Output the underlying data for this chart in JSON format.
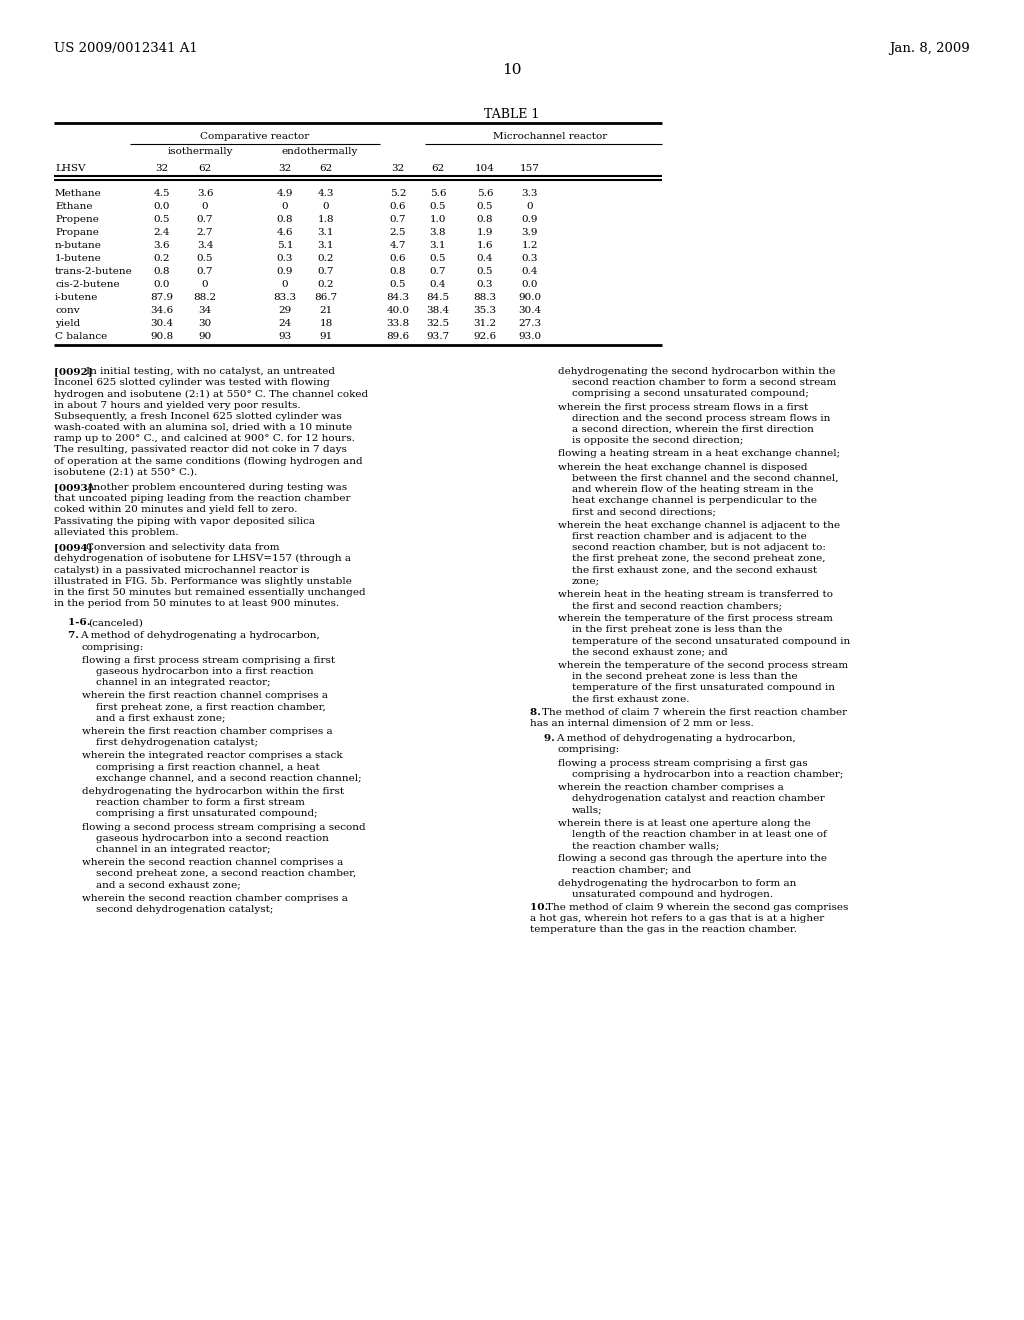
{
  "header_left": "US 2009/0012341 A1",
  "header_right": "Jan. 8, 2009",
  "page_number": "10",
  "table_title": "TABLE 1",
  "table": {
    "comp_reactor_label": "Comparative reactor",
    "isothermally_label": "isothermally",
    "endothermally_label": "endothermally",
    "microchannel_label": "Microchannel reactor",
    "lhsv_label": "LHSV",
    "lhsv_values": [
      "32",
      "62",
      "32",
      "62",
      "32",
      "62",
      "104",
      "157"
    ],
    "rows": [
      {
        "label": "Methane",
        "values": [
          "4.5",
          "3.6",
          "4.9",
          "4.3",
          "5.2",
          "5.6",
          "5.6",
          "3.3"
        ]
      },
      {
        "label": "Ethane",
        "values": [
          "0.0",
          "0",
          "0",
          "0",
          "0.6",
          "0.5",
          "0.5",
          "0"
        ]
      },
      {
        "label": "Propene",
        "values": [
          "0.5",
          "0.7",
          "0.8",
          "1.8",
          "0.7",
          "1.0",
          "0.8",
          "0.9"
        ]
      },
      {
        "label": "Propane",
        "values": [
          "2.4",
          "2.7",
          "4.6",
          "3.1",
          "2.5",
          "3.8",
          "1.9",
          "3.9"
        ]
      },
      {
        "label": "n-butane",
        "values": [
          "3.6",
          "3.4",
          "5.1",
          "3.1",
          "4.7",
          "3.1",
          "1.6",
          "1.2"
        ]
      },
      {
        "label": "1-butene",
        "values": [
          "0.2",
          "0.5",
          "0.3",
          "0.2",
          "0.6",
          "0.5",
          "0.4",
          "0.3"
        ]
      },
      {
        "label": "trans-2-butene",
        "values": [
          "0.8",
          "0.7",
          "0.9",
          "0.7",
          "0.8",
          "0.7",
          "0.5",
          "0.4"
        ]
      },
      {
        "label": "cis-2-butene",
        "values": [
          "0.0",
          "0",
          "0",
          "0.2",
          "0.5",
          "0.4",
          "0.3",
          "0.0"
        ]
      },
      {
        "label": "i-butene",
        "values": [
          "87.9",
          "88.2",
          "83.3",
          "86.7",
          "84.3",
          "84.5",
          "88.3",
          "90.0"
        ]
      },
      {
        "label": "conv",
        "values": [
          "34.6",
          "34",
          "29",
          "21",
          "40.0",
          "38.4",
          "35.3",
          "30.4"
        ]
      },
      {
        "label": "yield",
        "values": [
          "30.4",
          "30",
          "24",
          "18",
          "33.8",
          "32.5",
          "31.2",
          "27.3"
        ]
      },
      {
        "label": "C balance",
        "values": [
          "90.8",
          "90",
          "93",
          "91",
          "89.6",
          "93.7",
          "92.6",
          "93.0"
        ]
      }
    ]
  },
  "left_paragraphs": [
    {
      "tag": "[0092]",
      "body": "In initial testing, with no catalyst, an untreated Inconel 625 slotted cylinder was tested with flowing hydrogen and isobutene (2:1) at 550° C. The channel coked in about 7 hours and yielded very poor results. Subsequently, a fresh Inconel 625 slotted cylinder was wash-coated with an alumina sol, dried with a 10 minute ramp up to 200° C., and calcined at 900° C. for 12 hours. The resulting, passivated reactor did not coke in 7 days of operation at the same conditions (flowing hydrogen and isobutene (2:1) at 550° C.).",
      "indent_first": false
    },
    {
      "tag": "[0093]",
      "body": "Another problem encountered during testing was that uncoated piping leading from the reaction chamber coked within 20 minutes and yield fell to zero. Passivating the piping with vapor deposited silica alleviated this problem.",
      "indent_first": false
    },
    {
      "tag": "[0094]",
      "body": "Conversion and selectivity data from dehydrogenation of isobutene for LHSV=157 (through a catalyst) in a passivated microchannel reactor is illustrated in FIG. 5b. Performance was slightly unstable in the first 50 minutes but remained essentially unchanged in the period from 50 minutes to at least 900 minutes.",
      "indent_first": false
    }
  ],
  "left_claims": [
    {
      "num": "1-6.",
      "text": "(canceled)",
      "indent": true
    },
    {
      "num": "7.",
      "text": "A method of dehydrogenating a hydrocarbon, comprising:",
      "indent": true
    },
    {
      "num": null,
      "text": "flowing a first process stream comprising a first gaseous hydrocarbon into a first reaction channel in an integrated reactor;",
      "indent": true,
      "bullet_indent": true
    },
    {
      "num": null,
      "text": "wherein the first reaction channel comprises a first preheat zone, a first reaction chamber, and a first exhaust zone;",
      "indent": true,
      "bullet_indent": true
    },
    {
      "num": null,
      "text": "wherein the first reaction chamber comprises a first dehydrogenation catalyst;",
      "indent": true,
      "bullet_indent": true
    },
    {
      "num": null,
      "text": "wherein the integrated reactor comprises a stack comprising a first reaction channel, a heat exchange channel, and a second reaction channel;",
      "indent": true,
      "bullet_indent": true
    },
    {
      "num": null,
      "text": "dehydrogenating the hydrocarbon within the first reaction chamber to form a first stream comprising a first unsaturated compound;",
      "indent": true,
      "bullet_indent": true
    },
    {
      "num": null,
      "text": "flowing a second process stream comprising a second gaseous hydrocarbon into a second reaction channel in an integrated reactor;",
      "indent": true,
      "bullet_indent": true
    },
    {
      "num": null,
      "text": "wherein the second reaction channel comprises a second preheat zone, a second reaction chamber, and a second exhaust zone;",
      "indent": true,
      "bullet_indent": true
    },
    {
      "num": null,
      "text": "wherein the second reaction chamber comprises a second dehydrogenation catalyst;",
      "indent": true,
      "bullet_indent": true
    }
  ],
  "right_claims": [
    {
      "num": null,
      "text": "dehydrogenating the second hydrocarbon within the second reaction chamber to form a second stream comprising a second unsaturated compound;",
      "indent": true,
      "bullet_indent": true
    },
    {
      "num": null,
      "text": "wherein the first process stream flows in a first direction and the second process stream flows in a second direction, wherein the first direction is opposite the second direction;",
      "indent": true,
      "bullet_indent": true
    },
    {
      "num": null,
      "text": "flowing a heating stream in a heat exchange channel;",
      "indent": true,
      "bullet_indent": true
    },
    {
      "num": null,
      "text": "wherein the heat exchange channel is disposed between the first channel and the second channel, and wherein flow of the heating stream in the heat exchange channel is perpendicular to the first and second directions;",
      "indent": true,
      "bullet_indent": true
    },
    {
      "num": null,
      "text": "wherein the heat exchange channel is adjacent to the first reaction chamber and is adjacent to the second reaction chamber, but is not adjacent to: the first preheat zone, the second preheat zone, the first exhaust zone, and the second exhaust zone;",
      "indent": true,
      "bullet_indent": true
    },
    {
      "num": null,
      "text": "wherein heat in the heating stream is transferred to the first and second reaction chambers;",
      "indent": true,
      "bullet_indent": true
    },
    {
      "num": null,
      "text": "wherein the temperature of the first process stream in the first preheat zone is less than the temperature of the second unsaturated compound in the second exhaust zone; and",
      "indent": true,
      "bullet_indent": true
    },
    {
      "num": null,
      "text": "wherein the temperature of the second process stream in the second preheat zone is less than the temperature of the first unsaturated compound in the first exhaust zone.",
      "indent": true,
      "bullet_indent": true
    },
    {
      "num": "8.",
      "text": "The method of claim 7 wherein the first reaction chamber has an internal dimension of 2 mm or less.",
      "indent": false,
      "bullet_indent": false,
      "inline": true
    },
    {
      "num": "9.",
      "text": "A method of dehydrogenating a hydrocarbon, comprising:",
      "indent": true,
      "bullet_indent": false
    },
    {
      "num": null,
      "text": "flowing a process stream comprising a first gas comprising a hydrocarbon into a reaction chamber;",
      "indent": true,
      "bullet_indent": true
    },
    {
      "num": null,
      "text": "wherein the reaction chamber comprises a dehydrogenation catalyst and reaction chamber walls;",
      "indent": true,
      "bullet_indent": true
    },
    {
      "num": null,
      "text": "wherein there is at least one aperture along the length of the reaction chamber in at least one of the reaction chamber walls;",
      "indent": true,
      "bullet_indent": true
    },
    {
      "num": null,
      "text": "flowing a second gas through the aperture into the reaction chamber; and",
      "indent": true,
      "bullet_indent": true
    },
    {
      "num": null,
      "text": "dehydrogenating the hydrocarbon to form an unsaturated compound and hydrogen.",
      "indent": true,
      "bullet_indent": true
    },
    {
      "num": "10.",
      "text": "The method of claim 9 wherein the second gas comprises a hot gas, wherein hot refers to a gas that is at a higher temperature than the gas in the reaction chamber.",
      "indent": false,
      "bullet_indent": false,
      "inline": true
    }
  ],
  "bg": "#ffffff"
}
